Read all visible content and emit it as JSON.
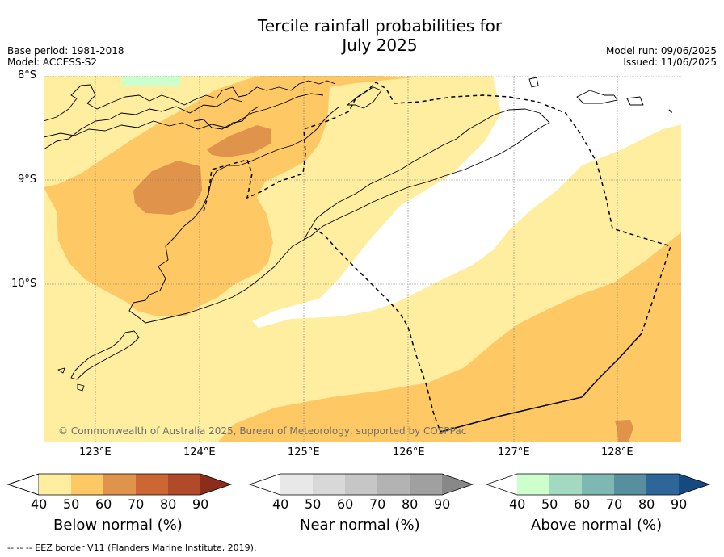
{
  "title_line1": "Tercile rainfall probabilities for",
  "title_line2": "July 2025",
  "meta_left": {
    "base_period": "Base period: 1981-2018",
    "model": "Model: ACCESS-S2"
  },
  "meta_right": {
    "model_run": "Model run: 09/06/2025",
    "issued": "Issued: 11/06/2025"
  },
  "map": {
    "lat_labels": [
      "8°S",
      "9°S",
      "10°S"
    ],
    "lon_labels": [
      "123°E",
      "124°E",
      "125°E",
      "126°E",
      "127°E",
      "128°E"
    ],
    "copyright": "© Commonwealth of Australia 2025, Bureau of Meteorology, supported by COSPPac"
  },
  "colorbars": [
    {
      "title": "Below normal (%)",
      "ticks": [
        "40",
        "50",
        "60",
        "70",
        "80",
        "90"
      ],
      "colors": [
        "#ffffff",
        "#ffeda0",
        "#fec965",
        "#e0934a",
        "#cc6633",
        "#b04a28",
        "#8c2d1c"
      ]
    },
    {
      "title": "Near normal (%)",
      "ticks": [
        "40",
        "50",
        "60",
        "70",
        "80",
        "90"
      ],
      "colors": [
        "#ffffff",
        "#e8e8e8",
        "#d8d8d8",
        "#c6c6c6",
        "#b3b3b3",
        "#a0a0a0",
        "#888888"
      ]
    },
    {
      "title": "Above normal (%)",
      "ticks": [
        "40",
        "50",
        "60",
        "70",
        "80",
        "90"
      ],
      "colors": [
        "#ffffff",
        "#ccffcc",
        "#a3d9c0",
        "#7fb8b2",
        "#578f9e",
        "#2f6699",
        "#144a80"
      ]
    }
  ],
  "footnote": "--  --  -- EEZ border V11 (Flanders Marine Institute, 2019)."
}
